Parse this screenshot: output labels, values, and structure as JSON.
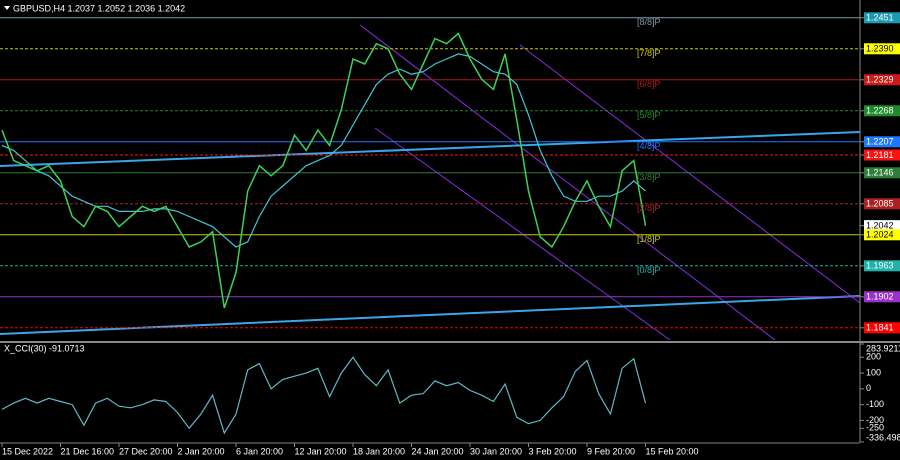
{
  "chart_data": [
    {
      "type": "line",
      "title": "GBPUSD,H4 1.2037 1.2052 1.2036 1.2042",
      "categories": [
        "15 Dec 2022",
        null,
        null,
        null,
        null,
        "21 Dec 16:00",
        null,
        null,
        null,
        null,
        "27 Dec 20:00",
        null,
        null,
        null,
        null,
        "2 Jan 20:00",
        null,
        null,
        null,
        null,
        "6 Jan 20:00",
        null,
        null,
        null,
        null,
        "12 Jan 20:00",
        null,
        null,
        null,
        null,
        "18 Jan 20:00",
        null,
        null,
        null,
        null,
        "24 Jan 20:00",
        null,
        null,
        null,
        null,
        "30 Jan 20:00",
        null,
        null,
        null,
        null,
        "3 Feb 20:00",
        null,
        null,
        null,
        null,
        "9 Feb 20:00",
        null,
        null,
        null,
        null,
        "15 Feb 20:00"
      ],
      "series": [
        {
          "color": "#40c8d8",
          "values": [
            1.22,
            1.219,
            1.217,
            1.215,
            1.214,
            1.212,
            1.21,
            1.209,
            1.208,
            1.208,
            1.207,
            1.207,
            1.207,
            1.2075,
            1.2075,
            1.207,
            1.206,
            1.205,
            1.204,
            1.202,
            1.2,
            1.201,
            1.206,
            1.21,
            1.212,
            1.214,
            1.216,
            1.217,
            1.218,
            1.22,
            1.224,
            1.228,
            1.232,
            1.234,
            1.235,
            1.234,
            1.2345,
            1.236,
            1.237,
            1.238,
            1.2375,
            1.236,
            1.2345,
            1.234,
            1.232,
            1.226,
            1.219,
            1.214,
            1.21,
            1.209,
            1.209,
            1.21,
            1.21,
            1.211,
            1.213,
            1.211
          ]
        },
        {
          "color": "#3cd25a",
          "values": [
            1.223,
            1.217,
            1.216,
            1.215,
            1.216,
            1.213,
            1.206,
            1.204,
            1.208,
            1.207,
            1.204,
            1.206,
            1.208,
            1.207,
            1.208,
            1.204,
            1.2,
            1.201,
            1.203,
            1.188,
            1.195,
            1.211,
            1.216,
            1.214,
            1.216,
            1.222,
            1.219,
            1.223,
            1.22,
            1.227,
            1.237,
            1.236,
            1.24,
            1.239,
            1.234,
            1.231,
            1.236,
            1.241,
            1.24,
            1.242,
            1.237,
            1.233,
            1.231,
            1.238,
            1.225,
            1.211,
            1.202,
            1.2,
            1.204,
            1.209,
            1.213,
            1.208,
            1.204,
            1.215,
            1.217,
            1.2042
          ]
        }
      ],
      "ylim": [
        1.1817,
        1.2486
      ],
      "yticks": [
        1.2451,
        {
          "value": 1.239,
          "label": "1.2390"
        },
        1.2329,
        1.2268,
        1.2207,
        1.2181,
        1.2146,
        1.2085,
        1.2042,
        1.2024,
        1.1963,
        1.1902,
        1.1841
      ],
      "ytick_colors": [
        "#1e9ab0",
        "#ffff00",
        "#d01818",
        "#1f8a2a",
        "#1e78ff",
        "#ff1010",
        "#2e7d3a",
        "#b02020",
        "#ffffff",
        "#ffff00",
        "#20b2aa",
        "#9932cc",
        "#ff0000"
      ],
      "levels": [
        {
          "label": "[8/8]P",
          "value": 1.2451,
          "color": "#7a9aa8"
        },
        {
          "label": "[7/8]P",
          "value": 1.239,
          "color": "#c8c800"
        },
        {
          "label": "[6/8]P",
          "value": 1.2329,
          "color": "#b01818"
        },
        {
          "label": "[5/8]P",
          "value": 1.2268,
          "color": "#1f8a2a"
        },
        {
          "label": "[4/8]P",
          "value": 1.2207,
          "color": "#1e78ff"
        },
        {
          "value": 1.2181,
          "color": "#ff1010"
        },
        {
          "label": "[3/8]P",
          "value": 1.2146,
          "color": "#2e7d3a"
        },
        {
          "label": "[2/8]P",
          "value": 1.2085,
          "color": "#b02020"
        },
        {
          "label": "[1/8]P",
          "value": 1.2024,
          "color": "#c8c800"
        },
        {
          "label": "[0/8]P",
          "value": 1.1963,
          "color": "#20b2aa"
        },
        {
          "value": 1.1902,
          "color": "#9932cc"
        },
        {
          "value": 1.1841,
          "color": "#ff0000"
        }
      ]
    },
    {
      "type": "line",
      "title": "X_CCI(30) -91.0713",
      "series": [
        {
          "color": "#5fb8c8",
          "values": [
            -130,
            -90,
            -60,
            -90,
            -60,
            -80,
            -100,
            -230,
            -90,
            -60,
            -110,
            -120,
            -100,
            -70,
            -80,
            -150,
            -250,
            -160,
            -40,
            -280,
            -160,
            120,
            160,
            0,
            60,
            80,
            100,
            130,
            -50,
            100,
            200,
            90,
            20,
            120,
            -90,
            -40,
            -30,
            50,
            20,
            40,
            -10,
            -40,
            -80,
            30,
            -180,
            -220,
            -200,
            -120,
            -50,
            110,
            180,
            -30,
            -160,
            130,
            190,
            -91.0713
          ]
        }
      ],
      "ylim": [
        -336.4986,
        283.9211
      ],
      "yticks": [
        283.9211,
        200,
        100,
        0,
        -100,
        -200,
        -250,
        -336.4986
      ]
    }
  ]
}
